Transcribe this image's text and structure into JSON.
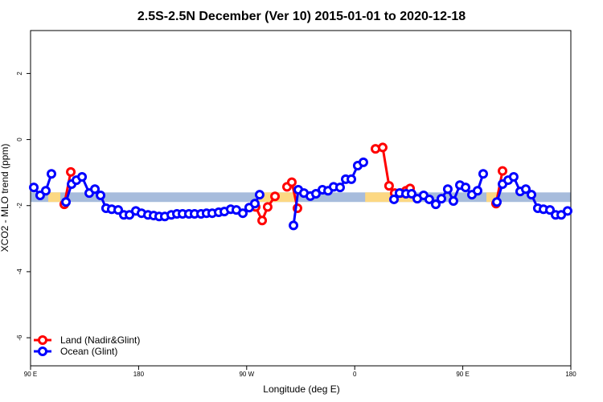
{
  "chart_data": {
    "type": "line",
    "title": "2.5S-2.5N December (Ver 10)   2015-01-01 to 2020-12-18",
    "x_label": "Longitude (deg E)",
    "y_label": "XCO2 - MLO trend (ppm)",
    "xlim": [
      90,
      540
    ],
    "ylim": [
      -6.85,
      3.3
    ],
    "xticks": [
      {
        "value": 90,
        "label": "90 E"
      },
      180,
      {
        "value": 270,
        "label": "90 W"
      },
      {
        "value": 360,
        "label": "0"
      },
      {
        "value": 450,
        "label": "90 E"
      },
      {
        "value": 540,
        "label": "180"
      }
    ],
    "yticks": [
      -6,
      -4,
      -2,
      0,
      2
    ],
    "legend_position": "bottom-left",
    "band": {
      "range": [
        -1.89,
        -1.6
      ],
      "color": "#a7bcdc",
      "land_color": "#fcd882",
      "land_spans": [
        [
          104.7,
          114.8
        ],
        [
          278.8,
          312.3
        ],
        [
          368.7,
          408.9
        ],
        [
          469.7,
          479.7
        ]
      ]
    },
    "series": [
      {
        "name": "Land (Nadir&Glint)",
        "color": "#ff0000",
        "x": [
          118.1,
          123.5,
          null,
          277.5,
          282.9,
          287.5,
          293.6,
          null,
          303.6,
          307.6,
          312.3,
          null,
          377.3,
          383.3,
          388.6,
          393.3,
          398.0,
          402.7,
          406.1,
          null,
          477.7,
          483.1
        ],
        "values": [
          -1.96,
          -0.98,
          null,
          -2.04,
          -2.45,
          -2.04,
          -1.72,
          null,
          -1.43,
          -1.29,
          -2.08,
          null,
          -0.28,
          -0.24,
          -1.4,
          -1.62,
          -1.62,
          -1.55,
          -1.48,
          null,
          -1.94,
          -0.95
        ]
      },
      {
        "name": "Ocean (Glint)",
        "color": "#0000ff",
        "x": [
          92.7,
          98.0,
          102.7,
          107.4,
          null,
          119.5,
          124.2,
          128.2,
          132.9,
          138.9,
          143.6,
          148.3,
          152.9,
          157.6,
          163.0,
          167.7,
          172.4,
          177.7,
          182.4,
          187.8,
          192.5,
          197.1,
          201.8,
          207.2,
          211.9,
          216.6,
          221.9,
          226.6,
          232.0,
          236.6,
          241.3,
          246.7,
          251.4,
          256.7,
          261.4,
          266.8,
          272.1,
          276.8,
          280.8,
          null,
          309.0,
          313.0,
          317.7,
          323.0,
          327.7,
          333.1,
          337.8,
          342.4,
          347.8,
          352.5,
          357.2,
          362.5,
          367.2,
          null,
          392.7,
          397.3,
          402.7,
          407.4,
          412.1,
          417.4,
          422.1,
          427.5,
          432.2,
          437.5,
          442.2,
          447.6,
          452.3,
          457.6,
          462.3,
          467.0,
          null,
          478.4,
          483.1,
          487.8,
          492.4,
          497.8,
          502.5,
          507.2,
          512.5,
          517.2,
          522.6,
          527.3,
          532.0,
          537.3
        ],
        "values": [
          -1.45,
          -1.69,
          -1.55,
          -1.04,
          null,
          -1.89,
          -1.35,
          -1.23,
          -1.13,
          -1.62,
          -1.5,
          -1.69,
          -2.08,
          -2.11,
          -2.13,
          -2.28,
          -2.28,
          -2.16,
          -2.23,
          -2.28,
          -2.3,
          -2.33,
          -2.33,
          -2.28,
          -2.25,
          -2.25,
          -2.25,
          -2.25,
          -2.25,
          -2.23,
          -2.23,
          -2.2,
          -2.18,
          -2.11,
          -2.13,
          -2.23,
          -2.06,
          -1.94,
          -1.67,
          null,
          -2.6,
          -1.52,
          -1.62,
          -1.71,
          -1.64,
          -1.52,
          -1.55,
          -1.43,
          -1.45,
          -1.2,
          -1.2,
          -0.79,
          -0.69,
          null,
          -1.81,
          -1.62,
          -1.64,
          -1.64,
          -1.79,
          -1.69,
          -1.81,
          -1.96,
          -1.79,
          -1.5,
          -1.86,
          -1.38,
          -1.45,
          -1.67,
          -1.55,
          -1.04,
          null,
          -1.89,
          -1.35,
          -1.23,
          -1.13,
          -1.57,
          -1.5,
          -1.67,
          -2.08,
          -2.11,
          -2.13,
          -2.28,
          -2.28,
          -2.16
        ]
      }
    ]
  }
}
